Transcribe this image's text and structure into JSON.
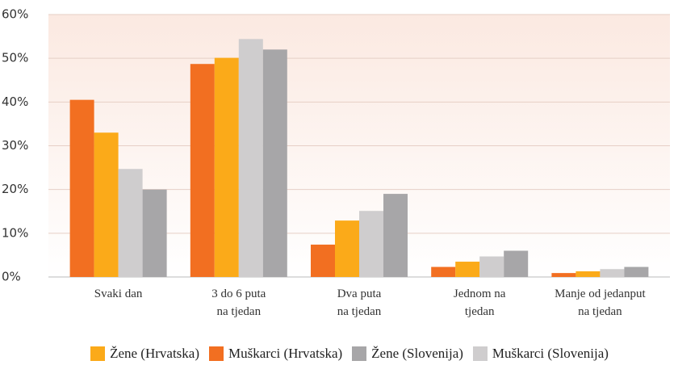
{
  "chart_data": {
    "type": "bar",
    "categories": [
      "Svaki dan",
      "3 do 6 puta\nna tjedan",
      "Dva puta\nna tjedan",
      "Jednom na\ntjedan",
      "Manje od jedanput\nna tjedan"
    ],
    "series": [
      {
        "name": "Žene (Hrvatska)",
        "color": "#fbaa19",
        "values": [
          33,
          50.1,
          12.9,
          3.5,
          1.3
        ]
      },
      {
        "name": "Muškarci (Hrvatska)",
        "color": "#f26f21",
        "values": [
          40.5,
          48.7,
          7.4,
          2.3,
          0.9
        ]
      },
      {
        "name": "Žene (Slovenija)",
        "color": "#a7a6a8",
        "values": [
          20,
          52,
          19,
          6,
          2.3
        ]
      },
      {
        "name": "Muškarci (Slovenija)",
        "color": "#cfcdce",
        "values": [
          24.7,
          54.4,
          15.1,
          4.7,
          1.8
        ]
      }
    ],
    "ylim": [
      0,
      60
    ],
    "yticks": [
      {
        "value": 0,
        "label": "0%"
      },
      {
        "value": 10,
        "label": "10%"
      },
      {
        "value": 20,
        "label": "20%"
      },
      {
        "value": 30,
        "label": "30%"
      },
      {
        "value": 40,
        "label": "40%"
      },
      {
        "value": 50,
        "label": "50%"
      },
      {
        "value": 60,
        "label": "60%"
      }
    ],
    "grid": true,
    "legend": "bottom"
  }
}
